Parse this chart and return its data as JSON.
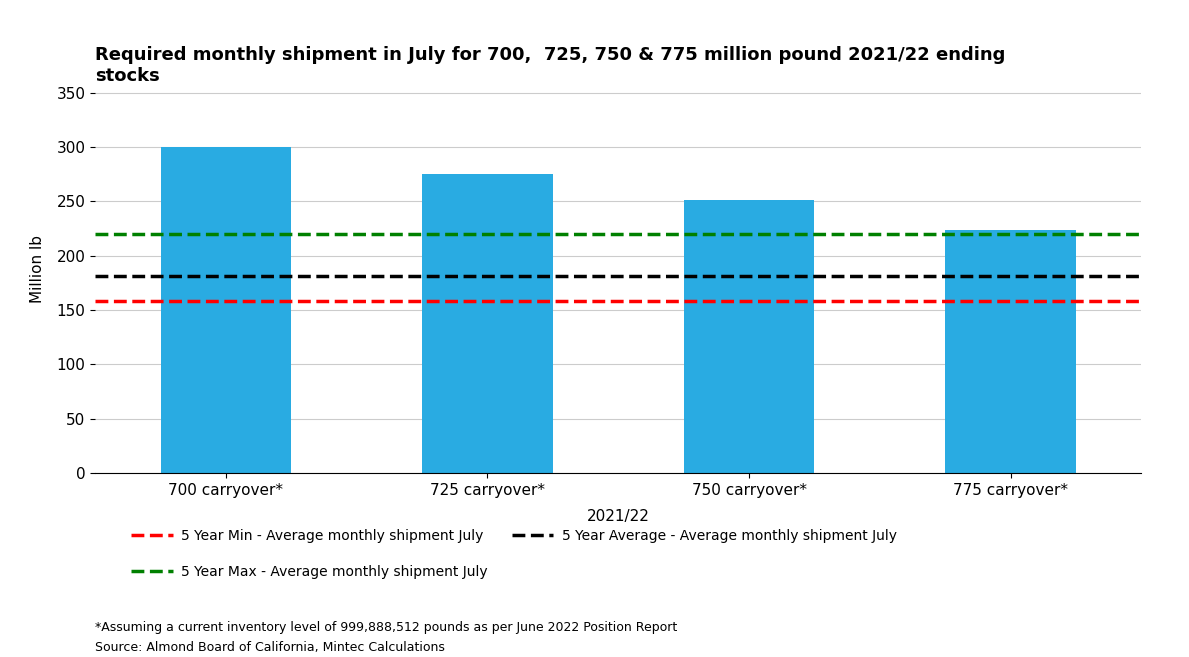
{
  "title": "Required monthly shipment in July for 700,  725, 750 & 775 million pound 2021/22 ending\nstocks",
  "categories": [
    "700 carryover*",
    "725 carryover*",
    "750 carryover*",
    "775 carryover*"
  ],
  "bar_values": [
    300,
    275,
    251,
    224
  ],
  "bar_color": "#29ABE2",
  "xlabel": "2021/22",
  "ylabel": "Million lb",
  "ylim": [
    0,
    375
  ],
  "yticks": [
    0,
    50,
    100,
    150,
    200,
    250,
    300,
    350
  ],
  "hline_min": 158,
  "hline_avg": 181,
  "hline_max": 220,
  "hline_min_color": "#FF0000",
  "hline_avg_color": "#000000",
  "hline_max_color": "#008000",
  "hline_style": "--",
  "hline_linewidth": 2.5,
  "legend_min_label": "5 Year Min - Average monthly shipment July",
  "legend_avg_label": "5 Year Average - Average monthly shipment July",
  "legend_max_label": "5 Year Max - Average monthly shipment July",
  "footnote1": "*Assuming a current inventory level of 999,888,512 pounds as per June 2022 Position Report",
  "footnote2": "Source: Almond Board of California, Mintec Calculations",
  "title_fontsize": 13,
  "axis_label_fontsize": 11,
  "tick_fontsize": 11,
  "legend_fontsize": 10,
  "footnote_fontsize": 9,
  "background_color": "#FFFFFF",
  "grid_color": "#CCCCCC"
}
